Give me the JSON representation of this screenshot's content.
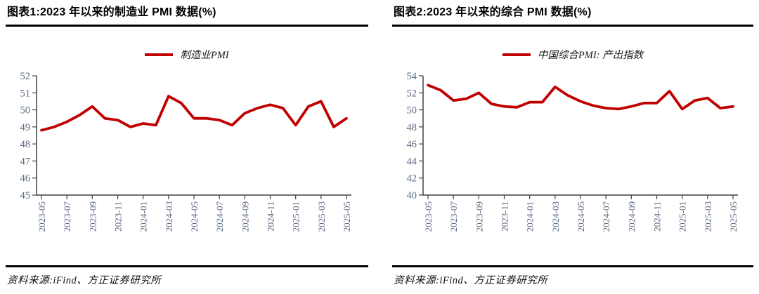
{
  "source_text": "资料来源:iFind、方正证券研究所",
  "colors": {
    "line": "#c00000",
    "axis": "#404040",
    "tick_label": "#5b6b80",
    "rule": "#000000"
  },
  "chart_data": [
    {
      "type": "line",
      "title": "图表1:2023 年以来的制造业 PMI 数据(%)",
      "legend": "制造业PMI",
      "legend_position": "top",
      "grid": false,
      "line_color": "#c00000",
      "x": [
        "2023-05",
        "2023-06",
        "2023-07",
        "2023-08",
        "2023-09",
        "2023-10",
        "2023-11",
        "2023-12",
        "2024-01",
        "2024-02",
        "2024-03",
        "2024-04",
        "2024-05",
        "2024-06",
        "2024-07",
        "2024-08",
        "2024-09",
        "2024-10",
        "2024-11",
        "2024-12",
        "2025-01",
        "2025-02",
        "2025-03",
        "2025-04",
        "2025-05"
      ],
      "values": [
        48.8,
        49.0,
        49.3,
        49.7,
        50.2,
        49.5,
        49.4,
        49.0,
        49.2,
        49.1,
        50.8,
        50.4,
        49.5,
        49.5,
        49.4,
        49.1,
        49.8,
        50.1,
        50.3,
        50.1,
        49.1,
        50.2,
        50.5,
        49.0,
        49.5
      ],
      "ylim": [
        45,
        52
      ],
      "ytick_step": 1,
      "xtick_labels": [
        "2023-05",
        "2023-07",
        "2023-09",
        "2023-11",
        "2024-01",
        "2024-03",
        "2024-05",
        "2024-07",
        "2024-09",
        "2024-11",
        "2025-01",
        "2025-03",
        "2025-05"
      ]
    },
    {
      "type": "line",
      "title": "图表2:2023 年以来的综合 PMI 数据(%)",
      "legend": "中国综合PMI: 产出指数",
      "legend_position": "top",
      "grid": false,
      "line_color": "#c00000",
      "x": [
        "2023-05",
        "2023-06",
        "2023-07",
        "2023-08",
        "2023-09",
        "2023-10",
        "2023-11",
        "2023-12",
        "2024-01",
        "2024-02",
        "2024-03",
        "2024-04",
        "2024-05",
        "2024-06",
        "2024-07",
        "2024-08",
        "2024-09",
        "2024-10",
        "2024-11",
        "2024-12",
        "2025-01",
        "2025-02",
        "2025-03",
        "2025-04",
        "2025-05"
      ],
      "values": [
        52.9,
        52.3,
        51.1,
        51.3,
        52.0,
        50.7,
        50.4,
        50.3,
        50.9,
        50.9,
        52.7,
        51.7,
        51.0,
        50.5,
        50.2,
        50.1,
        50.4,
        50.8,
        50.8,
        52.2,
        50.1,
        51.1,
        51.4,
        50.2,
        50.4
      ],
      "ylim": [
        40,
        54
      ],
      "ytick_step": 2,
      "xtick_labels": [
        "2023-05",
        "2023-07",
        "2023-09",
        "2023-11",
        "2024-01",
        "2024-03",
        "2024-05",
        "2024-07",
        "2024-09",
        "2024-11",
        "2025-01",
        "2025-03",
        "2025-05"
      ]
    }
  ]
}
